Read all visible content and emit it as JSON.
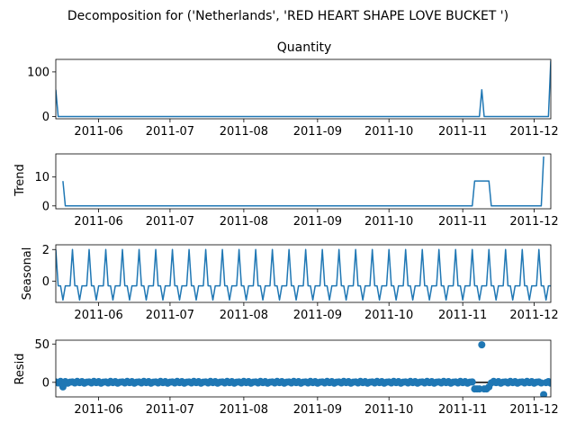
{
  "figure": {
    "suptitle": "Decomposition for ('Netherlands', 'RED HEART SHAPE LOVE BUCKET ')"
  },
  "colors": {
    "line": "#1f77b4",
    "marker": "#1f77b4",
    "zero_line": "#000000"
  },
  "chart_data": [
    {
      "type": "line",
      "title": "Quantity",
      "ylabel": "",
      "xlim": [
        "2011-05-14",
        "2011-12-08"
      ],
      "ylim": [
        -5,
        128
      ],
      "yticks": [
        0,
        100
      ],
      "xticks": [
        "2011-06",
        "2011-07",
        "2011-08",
        "2011-09",
        "2011-10",
        "2011-11",
        "2011-12"
      ],
      "series": [
        {
          "points": [
            [
              "2011-05-14",
              60
            ],
            [
              "2011-05-15",
              0
            ],
            [
              "2011-11-08",
              0
            ],
            [
              "2011-11-09",
              60
            ],
            [
              "2011-11-10",
              0
            ],
            [
              "2011-12-07",
              0
            ],
            [
              "2011-12-08",
              125
            ]
          ]
        }
      ]
    },
    {
      "type": "line",
      "title": "",
      "ylabel": "Trend",
      "xlim": [
        "2011-05-14",
        "2011-12-08"
      ],
      "ylim": [
        -1,
        18
      ],
      "yticks": [
        0,
        10
      ],
      "xticks": [
        "2011-06",
        "2011-07",
        "2011-08",
        "2011-09",
        "2011-10",
        "2011-11",
        "2011-12"
      ],
      "series": [
        {
          "points": [
            [
              "2011-05-17",
              8.6
            ],
            [
              "2011-05-18",
              0
            ],
            [
              "2011-11-05",
              0
            ],
            [
              "2011-11-06",
              8.6
            ],
            [
              "2011-11-12",
              8.6
            ],
            [
              "2011-11-13",
              0
            ],
            [
              "2011-12-04",
              0
            ],
            [
              "2011-12-05",
              17.1
            ]
          ]
        }
      ]
    },
    {
      "type": "line",
      "title": "",
      "ylabel": "Seasonal",
      "xlim": [
        "2011-05-14",
        "2011-12-08"
      ],
      "ylim": [
        -1.35,
        2.3
      ],
      "yticks": [
        0,
        2
      ],
      "xticks": [
        "2011-06",
        "2011-07",
        "2011-08",
        "2011-09",
        "2011-10",
        "2011-11",
        "2011-12"
      ],
      "period_days": 7,
      "series": [
        {
          "pattern": [
            2.0,
            -0.3,
            -0.3,
            -1.2,
            -0.3,
            -0.3,
            -0.3
          ],
          "start": "2011-05-14",
          "end": "2011-12-08"
        }
      ]
    },
    {
      "type": "scatter",
      "title": "",
      "ylabel": "Resid",
      "xlim": [
        "2011-05-14",
        "2011-12-08"
      ],
      "ylim": [
        -19,
        55
      ],
      "yticks": [
        0,
        50
      ],
      "xticks": [
        "2011-06",
        "2011-07",
        "2011-08",
        "2011-09",
        "2011-10",
        "2011-11",
        "2011-12"
      ],
      "zero_line": true,
      "notable_points": [
        [
          "2011-05-17",
          -6
        ],
        [
          "2011-11-06",
          -8.6
        ],
        [
          "2011-11-07",
          -8.6
        ],
        [
          "2011-11-08",
          -8.6
        ],
        [
          "2011-11-09",
          49
        ],
        [
          "2011-11-10",
          -8.6
        ],
        [
          "2011-11-11",
          -8.6
        ],
        [
          "2011-11-12",
          -6
        ],
        [
          "2011-12-05",
          -16
        ]
      ],
      "background_residual_pattern": [
        0.5,
        -0.8,
        1.2,
        -0.4,
        0.9,
        -1.1,
        0.3
      ]
    }
  ]
}
